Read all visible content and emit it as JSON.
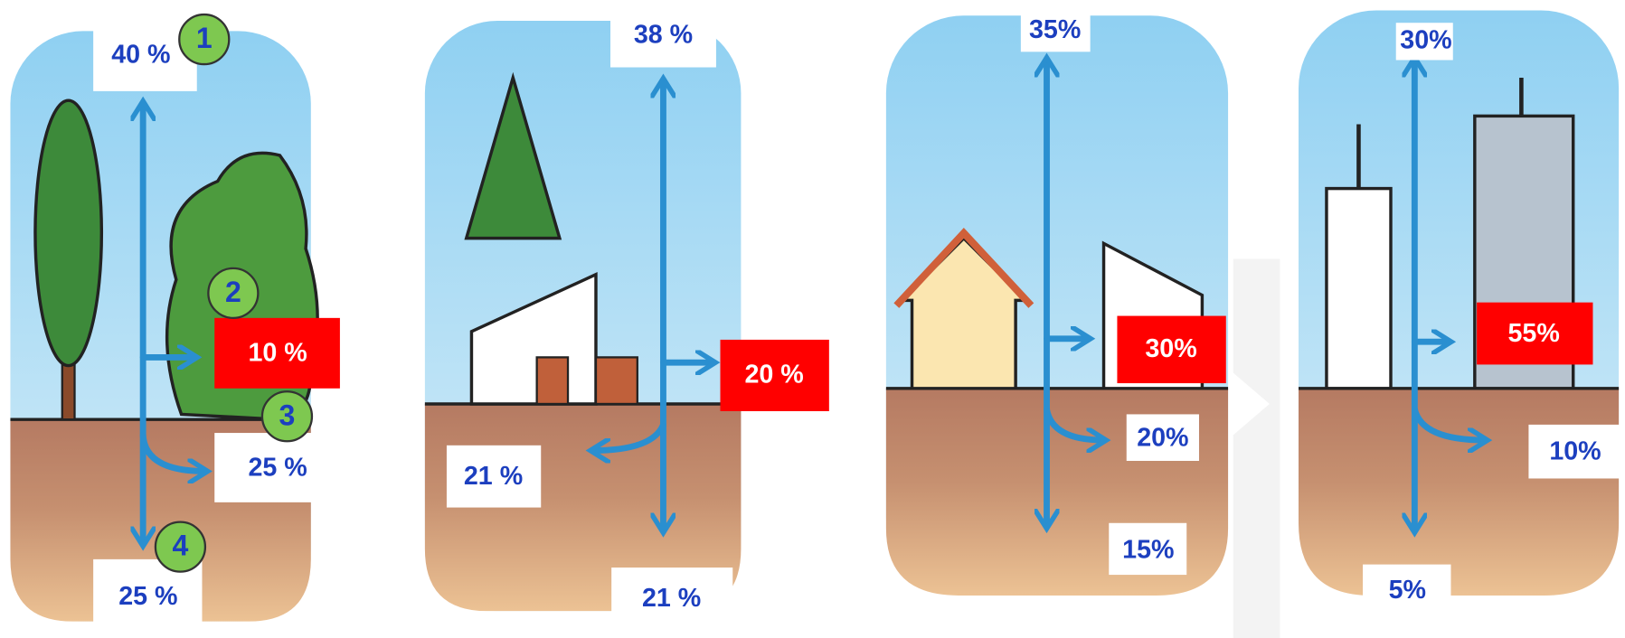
{
  "panels": [
    {
      "top": "40 %",
      "runoff": "10 %",
      "shallow": "25 %",
      "deep": "25 %",
      "markers": [
        "1",
        "2",
        "3",
        "4"
      ]
    },
    {
      "top": "38 %",
      "runoff": "20 %",
      "shallow": "21 %",
      "deep": "21 %"
    },
    {
      "top": "35%",
      "runoff": "30%",
      "shallow": "20%",
      "deep": "15%"
    },
    {
      "top": "30%",
      "runoff": "55%",
      "shallow": "10%",
      "deep": "5%"
    }
  ]
}
